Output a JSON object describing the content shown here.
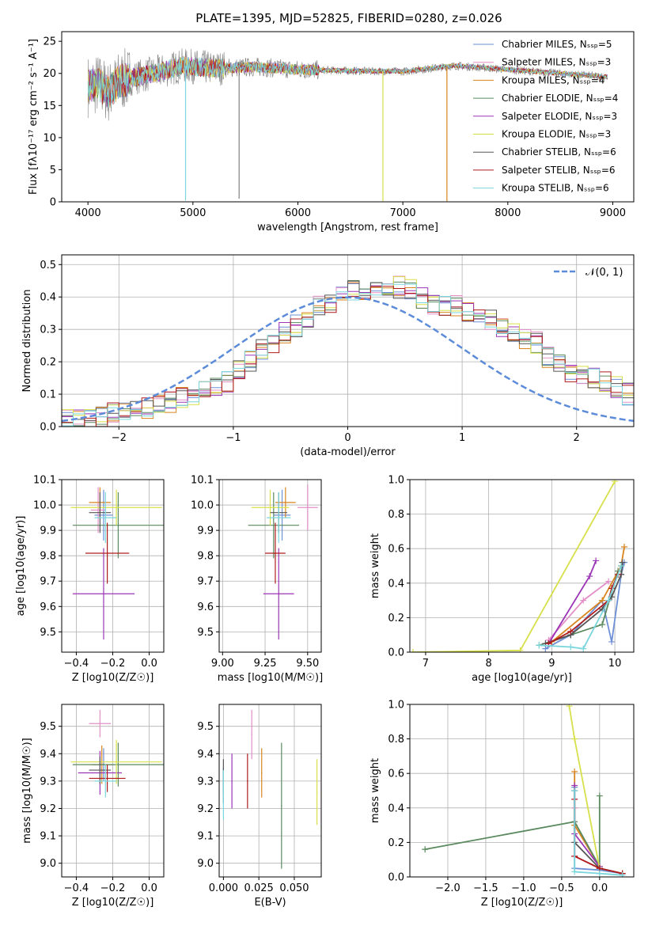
{
  "figure_title": "PLATE=1395, MJD=52825, FIBERID=0280, z=0.026",
  "colors": {
    "grid": "#b0b0b0",
    "normal_curve": "#5b8bd9",
    "models": [
      "#6d8fd6",
      "#e38fc8",
      "#d9841f",
      "#5a8a5e",
      "#9b35b6",
      "#d7e04a",
      "#555555",
      "#b01c1c",
      "#7ad6dc"
    ]
  },
  "chart_data": [
    {
      "id": "spectrum",
      "type": "line",
      "xlabel": "wavelength [Angstrom, rest frame]",
      "ylabel": "Flux [fλ10⁻¹⁷ erg cm⁻² s⁻¹ A⁻¹]",
      "xlim": [
        3750,
        9200
      ],
      "ylim": [
        0,
        26.5
      ],
      "xticks": [
        4000,
        5000,
        6000,
        7000,
        8000,
        9000
      ],
      "yticks": [
        0,
        5,
        10,
        15,
        20,
        25
      ],
      "legend_position": "top-right",
      "series": [
        {
          "name": "Chabrier MILES, N_SSP=5"
        },
        {
          "name": "Salpeter MILES, N_SSP=3"
        },
        {
          "name": "Kroupa MILES, N_SSP=4"
        },
        {
          "name": "Chabrier ELODIE, N_SSP=4"
        },
        {
          "name": "Salpeter ELODIE, N_SSP=3"
        },
        {
          "name": "Kroupa ELODIE, N_SSP=3"
        },
        {
          "name": "Chabrier STELIB, N_SSP=6"
        },
        {
          "name": "Salpeter STELIB, N_SSP=6"
        },
        {
          "name": "Kroupa STELIB, N_SSP=6"
        }
      ],
      "continuum": {
        "x": [
          4000,
          4100,
          4200,
          4300,
          4500,
          4700,
          4900,
          5200,
          5600,
          6000,
          6500,
          7000,
          7500,
          8000,
          8500,
          9000
        ],
        "y": [
          18,
          18.3,
          17,
          18.8,
          19.6,
          20.3,
          21.2,
          20.8,
          21.0,
          20.6,
          20.4,
          20.3,
          21.2,
          20.6,
          20.0,
          19.4
        ]
      },
      "dips": [
        {
          "x": 4930,
          "y": 0.2
        },
        {
          "x": 5440,
          "y": 0.5
        },
        {
          "x": 6810,
          "y": 0.1
        },
        {
          "x": 7420,
          "y": 0.1
        }
      ]
    },
    {
      "id": "residuals",
      "type": "histogram",
      "xlabel": "(data-model)/error",
      "ylabel": "Normed distribution",
      "xlim": [
        -2.5,
        2.5
      ],
      "ylim": [
        0,
        0.53
      ],
      "xticks": [
        -2,
        -1,
        0,
        1,
        2
      ],
      "yticks": [
        0.0,
        0.1,
        0.2,
        0.3,
        0.4,
        0.5
      ],
      "grid": true,
      "legend_position": "top-right",
      "reference": {
        "name": "𝒩(0, 1)",
        "mean": 0,
        "sigma": 1
      },
      "bins": {
        "start": -2.5,
        "width": 0.1
      },
      "base_profile": [
        0.02,
        0.022,
        0.03,
        0.035,
        0.04,
        0.05,
        0.055,
        0.06,
        0.07,
        0.075,
        0.09,
        0.1,
        0.11,
        0.13,
        0.14,
        0.18,
        0.2,
        0.24,
        0.26,
        0.29,
        0.31,
        0.33,
        0.37,
        0.38,
        0.4,
        0.42,
        0.4,
        0.42,
        0.44,
        0.43,
        0.42,
        0.4,
        0.38,
        0.37,
        0.37,
        0.36,
        0.35,
        0.33,
        0.31,
        0.29,
        0.27,
        0.26,
        0.21,
        0.2,
        0.17,
        0.16,
        0.15,
        0.14,
        0.12,
        0.1,
        0.09,
        0.08,
        0.06,
        0.055,
        0.05,
        0.04,
        0.035,
        0.03,
        0.028,
        0.025
      ]
    },
    {
      "id": "age-vs-Z",
      "type": "scatter",
      "xlabel": "Z [log10(Z/Z☉)]",
      "ylabel": "age  [log10(age/yr)]",
      "xlim": [
        -0.48,
        0.08
      ],
      "ylim": [
        9.42,
        10.1
      ],
      "xticks": [
        -0.4,
        -0.2,
        0.0
      ],
      "yticks": [
        9.5,
        9.6,
        9.7,
        9.8,
        9.9,
        10.0,
        10.1
      ],
      "grid": true,
      "points": [
        {
          "x": -0.25,
          "y": 9.96,
          "xerr": 0.05,
          "yerr": 0.1
        },
        {
          "x": -0.28,
          "y": 9.98,
          "xerr": 0.04,
          "yerr": 0.09
        },
        {
          "x": -0.27,
          "y": 10.01,
          "xerr": 0.06,
          "yerr": 0.06
        },
        {
          "x": -0.17,
          "y": 9.92,
          "xerr": 0.25,
          "yerr": 0.13
        },
        {
          "x": -0.25,
          "y": 9.65,
          "xerr": 0.17,
          "yerr": 0.18
        },
        {
          "x": -0.18,
          "y": 9.99,
          "xerr": 0.25,
          "yerr": 0.07
        },
        {
          "x": -0.27,
          "y": 9.97,
          "xerr": 0.06,
          "yerr": 0.08
        },
        {
          "x": -0.23,
          "y": 9.81,
          "xerr": 0.12,
          "yerr": 0.12
        },
        {
          "x": -0.24,
          "y": 9.95,
          "xerr": 0.06,
          "yerr": 0.1
        }
      ]
    },
    {
      "id": "age-vs-mass",
      "type": "scatter",
      "xlabel": "mass [log10(M/M☉)]",
      "ylabel": "",
      "xlim": [
        8.98,
        9.58
      ],
      "ylim": [
        9.42,
        10.1
      ],
      "xticks": [
        9.0,
        9.25,
        9.5
      ],
      "yticks": [
        9.5,
        9.6,
        9.7,
        9.8,
        9.9,
        10.0,
        10.1
      ],
      "grid": true,
      "points": [
        {
          "x": 9.35,
          "y": 9.96,
          "xerr": 0.05,
          "yerr": 0.1
        },
        {
          "x": 9.5,
          "y": 9.99,
          "xerr": 0.06,
          "yerr": 0.09
        },
        {
          "x": 9.37,
          "y": 10.01,
          "xerr": 0.06,
          "yerr": 0.06
        },
        {
          "x": 9.3,
          "y": 9.92,
          "xerr": 0.15,
          "yerr": 0.13
        },
        {
          "x": 9.33,
          "y": 9.65,
          "xerr": 0.09,
          "yerr": 0.18
        },
        {
          "x": 9.28,
          "y": 9.99,
          "xerr": 0.11,
          "yerr": 0.07
        },
        {
          "x": 9.33,
          "y": 9.97,
          "xerr": 0.05,
          "yerr": 0.08
        },
        {
          "x": 9.31,
          "y": 9.81,
          "xerr": 0.06,
          "yerr": 0.12
        },
        {
          "x": 9.33,
          "y": 9.95,
          "xerr": 0.07,
          "yerr": 0.1
        }
      ]
    },
    {
      "id": "weight-vs-age",
      "type": "line",
      "xlabel": "age  [log10(age/yr)]",
      "ylabel": "mass weight",
      "xlim": [
        6.75,
        10.3
      ],
      "ylim": [
        0,
        1.0
      ],
      "xticks": [
        7,
        8,
        9,
        10
      ],
      "yticks": [
        0.0,
        0.2,
        0.4,
        0.6,
        0.8,
        1.0
      ],
      "grid": true,
      "series": [
        {
          "x": [
            8.9,
            9.3,
            9.8,
            9.95,
            10.1,
            10.15
          ],
          "y": [
            0.02,
            0.1,
            0.3,
            0.06,
            0.45,
            0.52
          ]
        },
        {
          "x": [
            8.95,
            9.5,
            9.9
          ],
          "y": [
            0.07,
            0.3,
            0.41
          ]
        },
        {
          "x": [
            9.0,
            9.8,
            10.1,
            10.15
          ],
          "y": [
            0.06,
            0.3,
            0.5,
            0.61
          ]
        },
        {
          "x": [
            8.8,
            9.3,
            9.8,
            10.05
          ],
          "y": [
            0.04,
            0.1,
            0.16,
            0.47
          ]
        },
        {
          "x": [
            8.95,
            9.6,
            9.7
          ],
          "y": [
            0.05,
            0.44,
            0.53
          ]
        },
        {
          "x": [
            6.8,
            8.5,
            10.0
          ],
          "y": [
            0.0,
            0.01,
            0.99
          ]
        },
        {
          "x": [
            8.9,
            9.3,
            9.8,
            9.95,
            10.1,
            10.12
          ],
          "y": [
            0.05,
            0.1,
            0.25,
            0.32,
            0.45,
            0.52
          ]
        },
        {
          "x": [
            8.95,
            9.3,
            9.9,
            9.95,
            10.05
          ],
          "y": [
            0.05,
            0.12,
            0.3,
            0.37,
            0.45
          ]
        },
        {
          "x": [
            8.8,
            9.3,
            9.5,
            9.9,
            10.1
          ],
          "y": [
            0.04,
            0.03,
            0.02,
            0.3,
            0.5
          ]
        }
      ]
    },
    {
      "id": "mass-vs-Z",
      "type": "scatter",
      "xlabel": "Z [log10(Z/Z☉)]",
      "ylabel": "mass [log10(M/M☉)]",
      "xlim": [
        -0.48,
        0.08
      ],
      "ylim": [
        8.95,
        9.58
      ],
      "xticks": [
        -0.4,
        -0.2,
        0.0
      ],
      "yticks": [
        9.0,
        9.1,
        9.2,
        9.3,
        9.4,
        9.5
      ],
      "grid": true,
      "points": [
        {
          "x": -0.25,
          "y": 9.36,
          "xerr": 0.06,
          "yerr": 0.06
        },
        {
          "x": -0.27,
          "y": 9.51,
          "xerr": 0.06,
          "yerr": 0.05
        },
        {
          "x": -0.26,
          "y": 9.36,
          "xerr": 0.06,
          "yerr": 0.07
        },
        {
          "x": -0.17,
          "y": 9.36,
          "xerr": 0.25,
          "yerr": 0.08
        },
        {
          "x": -0.27,
          "y": 9.33,
          "xerr": 0.12,
          "yerr": 0.08
        },
        {
          "x": -0.18,
          "y": 9.37,
          "xerr": 0.25,
          "yerr": 0.08
        },
        {
          "x": -0.27,
          "y": 9.34,
          "xerr": 0.06,
          "yerr": 0.05
        },
        {
          "x": -0.23,
          "y": 9.31,
          "xerr": 0.1,
          "yerr": 0.05
        },
        {
          "x": -0.24,
          "y": 9.3,
          "xerr": 0.06,
          "yerr": 0.06
        }
      ]
    },
    {
      "id": "mass-vs-EBV",
      "type": "scatter",
      "xlabel": "E(B-V)",
      "ylabel": "",
      "xlim": [
        -0.003,
        0.069
      ],
      "ylim": [
        8.95,
        9.58
      ],
      "xticks": [
        0.0,
        0.025,
        0.05
      ],
      "yticks": [
        9.0,
        9.1,
        9.2,
        9.3,
        9.4,
        9.5
      ],
      "grid": true,
      "points": [
        {
          "x": 0.0,
          "y": 9.3,
          "yerr": 0.05
        },
        {
          "x": 0.02,
          "y": 9.47,
          "yerr": 0.09
        },
        {
          "x": 0.027,
          "y": 9.33,
          "yerr": 0.09
        },
        {
          "x": 0.041,
          "y": 9.21,
          "yerr": 0.23
        },
        {
          "x": 0.006,
          "y": 9.3,
          "yerr": 0.1
        },
        {
          "x": 0.066,
          "y": 9.26,
          "yerr": 0.12
        },
        {
          "x": 0.0,
          "y": 9.3,
          "yerr": 0.08
        },
        {
          "x": 0.017,
          "y": 9.3,
          "yerr": 0.1
        },
        {
          "x": 0.0,
          "y": 9.25,
          "yerr": 0.09
        }
      ]
    },
    {
      "id": "weight-vs-Z",
      "type": "line",
      "xlabel": "Z [log10(Z/Z☉)]",
      "ylabel": "mass weight",
      "xlim": [
        -2.5,
        0.45
      ],
      "ylim": [
        0,
        1.0
      ],
      "xticks": [
        -2.0,
        -1.5,
        -1.0,
        -0.5,
        0.0
      ],
      "yticks": [
        0.0,
        0.2,
        0.4,
        0.6,
        0.8,
        1.0
      ],
      "grid": true,
      "series": [
        {
          "x": [
            -0.33,
            -0.33,
            0.0,
            0.3
          ],
          "y": [
            0.52,
            0.05,
            0.04,
            0.02
          ]
        },
        {
          "x": [
            -0.33,
            -0.33,
            0.0,
            0.3
          ],
          "y": [
            0.4,
            0.12,
            0.05,
            0.02
          ]
        },
        {
          "x": [
            -0.33,
            -0.33,
            0.0
          ],
          "y": [
            0.61,
            0.3,
            0.06
          ]
        },
        {
          "x": [
            -2.3,
            -0.33,
            0.0,
            0.0
          ],
          "y": [
            0.16,
            0.32,
            0.06,
            0.47
          ]
        },
        {
          "x": [
            -0.33,
            -0.33,
            0.0
          ],
          "y": [
            0.53,
            0.25,
            0.06
          ]
        },
        {
          "x": [
            -0.4,
            -0.33,
            0.0
          ],
          "y": [
            0.99,
            0.8,
            0.05
          ]
        },
        {
          "x": [
            -0.33,
            -0.33,
            0.0,
            0.3
          ],
          "y": [
            0.5,
            0.2,
            0.05,
            0.02
          ]
        },
        {
          "x": [
            -0.33,
            -0.33,
            0.0,
            0.3
          ],
          "y": [
            0.45,
            0.12,
            0.05,
            0.02
          ]
        },
        {
          "x": [
            -0.33,
            -0.33,
            0.0,
            0.3
          ],
          "y": [
            0.5,
            0.03,
            0.02,
            0.01
          ]
        }
      ]
    }
  ]
}
